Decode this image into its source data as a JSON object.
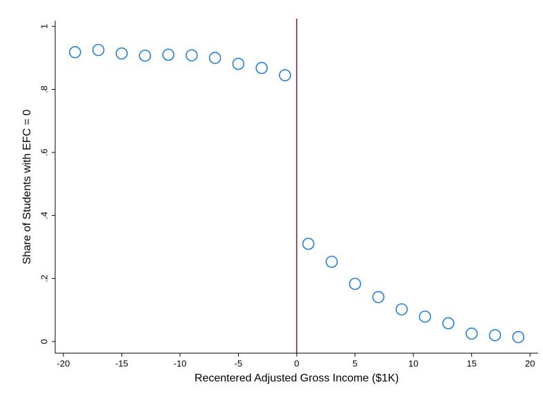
{
  "chart_data": {
    "type": "scatter",
    "x_label": "Recentered Adjusted Gross Income ($1K)",
    "y_label": "Share of Students with EFC = 0",
    "x": [
      -19,
      -17,
      -15,
      -13,
      -11,
      -9,
      -7,
      -5,
      -3,
      -1,
      1,
      3,
      5,
      7,
      9,
      11,
      13,
      15,
      17,
      19
    ],
    "series": [
      {
        "color": "#1e7fe0",
        "values": [
          0.918,
          0.925,
          0.914,
          0.907,
          0.91,
          0.908,
          0.9,
          0.881,
          0.868,
          0.845,
          0.31,
          0.253,
          0.183,
          0.141,
          0.102,
          0.079,
          0.058,
          0.025,
          0.02,
          0.014
        ]
      }
    ],
    "xlim": [
      -20.7,
      20.7
    ],
    "ylim": [
      -0.037,
      1.018
    ],
    "xticks": [
      -20,
      -15,
      -10,
      -5,
      0,
      5,
      10,
      15,
      20
    ],
    "yticks": [
      0,
      {
        "value": 0.2,
        "label": ".2"
      },
      {
        "value": 0.4,
        "label": ".4"
      },
      {
        "value": 0.6,
        "label": ".6"
      },
      {
        "value": 0.8,
        "label": ".8"
      },
      1
    ],
    "vline": 0,
    "vline_color": "#8b1538"
  }
}
